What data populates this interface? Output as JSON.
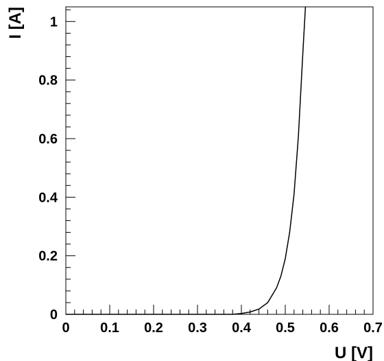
{
  "chart_data": {
    "type": "line",
    "xlabel": "U [V]",
    "ylabel": "I [A]",
    "xlim": [
      0,
      0.7
    ],
    "ylim": [
      0,
      1.05
    ],
    "x_ticks": [
      0,
      0.1,
      0.2,
      0.3,
      0.4,
      0.5,
      0.6,
      0.7
    ],
    "x_tick_labels": [
      "0",
      "0.1",
      "0.2",
      "0.3",
      "0.4",
      "0.5",
      "0.6",
      "0.7"
    ],
    "y_ticks": [
      0,
      0.2,
      0.4,
      0.6,
      0.8,
      1
    ],
    "y_tick_labels": [
      "0",
      "0.2",
      "0.4",
      "0.6",
      "0.8",
      "1"
    ],
    "grid": false,
    "series": [
      {
        "x": [
          0.0,
          0.1,
          0.2,
          0.3,
          0.38,
          0.4,
          0.42,
          0.44,
          0.46,
          0.48,
          0.49,
          0.5,
          0.51,
          0.52,
          0.53,
          0.54,
          0.546
        ],
        "y": [
          0.0,
          0.0,
          0.0,
          0.0,
          0.0,
          0.003,
          0.008,
          0.018,
          0.04,
          0.09,
          0.13,
          0.19,
          0.28,
          0.41,
          0.61,
          0.89,
          1.05
        ]
      }
    ]
  }
}
